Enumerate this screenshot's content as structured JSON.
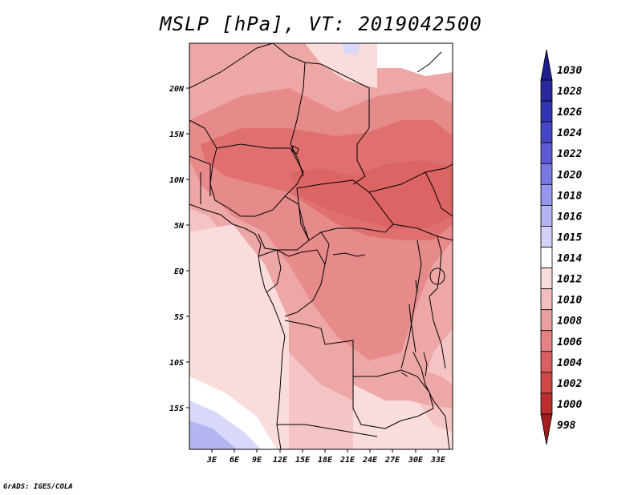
{
  "title": "MSLP [hPa], VT: 2019042500",
  "credit": "GrADS: IGES/COLA",
  "lat_ticks": [
    "20N",
    "15N",
    "10N",
    "5N",
    "EQ",
    "5S",
    "10S",
    "15S"
  ],
  "lon_ticks": [
    "3E",
    "6E",
    "9E",
    "12E",
    "15E",
    "18E",
    "21E",
    "24E",
    "27E",
    "30E",
    "33E"
  ],
  "colorbar": {
    "labels": [
      "1030",
      "1028",
      "1026",
      "1024",
      "1022",
      "1020",
      "1018",
      "1016",
      "1015",
      "1014",
      "1012",
      "1010",
      "1008",
      "1006",
      "1004",
      "1002",
      "1000",
      "998"
    ],
    "colors": [
      "#1e1e8c",
      "#2828a0",
      "#3232b4",
      "#4646c8",
      "#5a5ad7",
      "#7878e6",
      "#9696f0",
      "#b4b4f5",
      "#d2d2fa",
      "#ffffff",
      "#fadcdc",
      "#f5bebe",
      "#eba0a0",
      "#e68282",
      "#dc5f5f",
      "#d24646",
      "#be2d2d",
      "#a01e1e"
    ]
  },
  "map_colors": {
    "very_low": "#e07070",
    "low": "#e68a8a",
    "mid": "#eea7a7",
    "high": "#f5c4c4",
    "higher": "#fadcdc",
    "top": "#ffffff",
    "blue_light": "#d8d8fa",
    "blue": "#b4b4f0"
  }
}
